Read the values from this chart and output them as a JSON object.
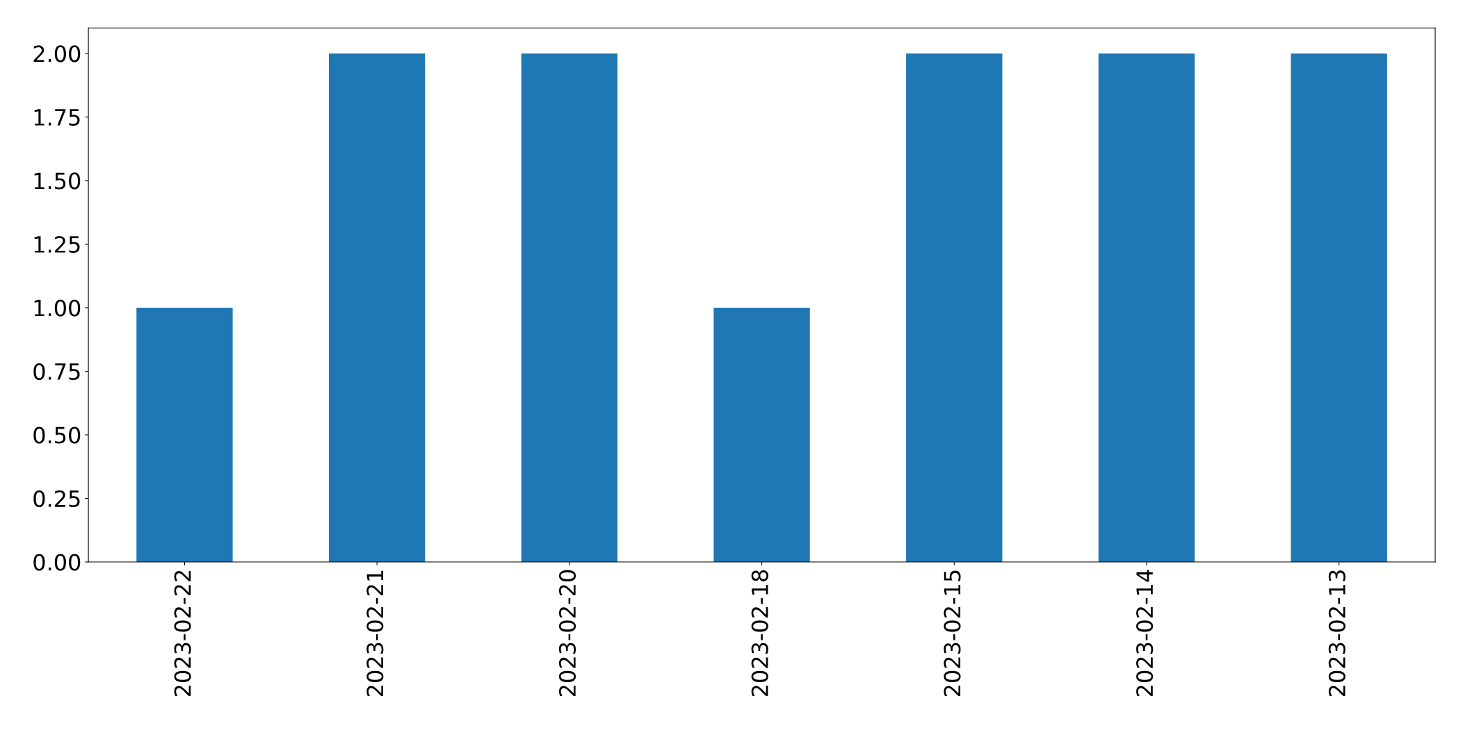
{
  "chart_data": {
    "type": "bar",
    "categories": [
      "2023-02-22",
      "2023-02-21",
      "2023-02-20",
      "2023-02-18",
      "2023-02-15",
      "2023-02-14",
      "2023-02-13"
    ],
    "values": [
      1,
      2,
      2,
      1,
      2,
      2,
      2
    ],
    "color": "#1f77b4",
    "ylim": [
      0,
      2.1
    ],
    "yticks": [
      {
        "value": 0,
        "label": "0.00"
      },
      {
        "value": 0.25,
        "label": "0.25"
      },
      {
        "value": 0.5,
        "label": "0.50"
      },
      {
        "value": 0.75,
        "label": "0.75"
      },
      {
        "value": 1,
        "label": "1.00"
      },
      {
        "value": 1.25,
        "label": "1.25"
      },
      {
        "value": 1.5,
        "label": "1.50"
      },
      {
        "value": 1.75,
        "label": "1.75"
      },
      {
        "value": 2,
        "label": "2.00"
      }
    ],
    "grid": false,
    "legend": false
  }
}
